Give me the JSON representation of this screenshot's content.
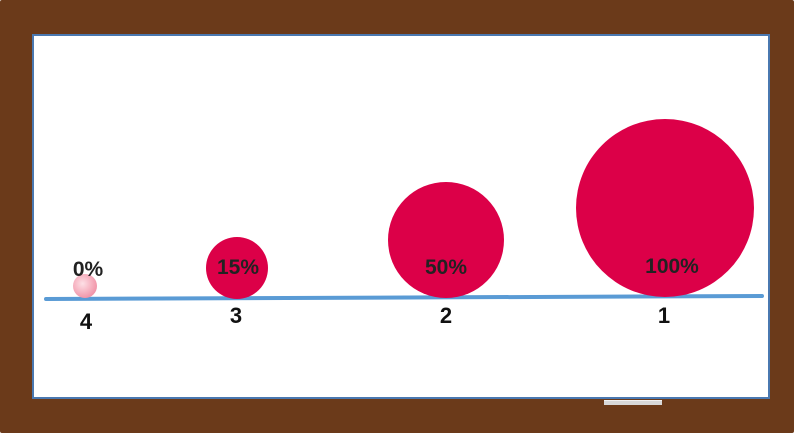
{
  "colors": {
    "frame": "#6b3a1a",
    "board": "#ffffff",
    "board_border": "#4a78b0",
    "baseline": "#5a9bd5",
    "ball": "#dc0048",
    "ball_empty": "#f5a7b5"
  },
  "items": [
    {
      "rank": "4",
      "percent_label": "0%",
      "fill": 0
    },
    {
      "rank": "3",
      "percent_label": "15%",
      "fill": 0.15
    },
    {
      "rank": "2",
      "percent_label": "50%",
      "fill": 0.5
    },
    {
      "rank": "1",
      "percent_label": "100%",
      "fill": 1.0
    }
  ]
}
